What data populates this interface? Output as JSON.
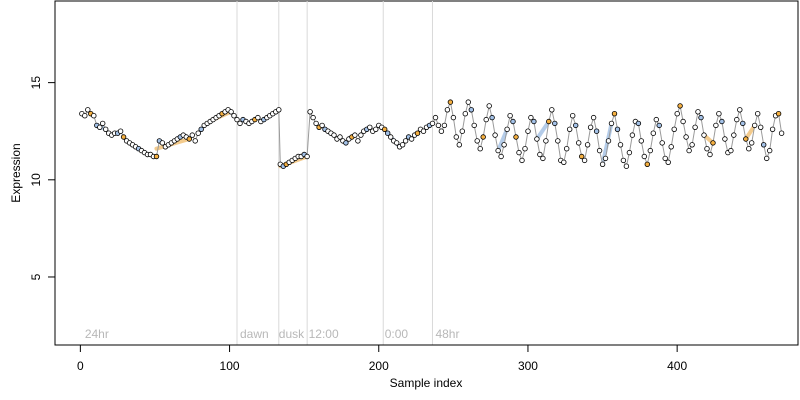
{
  "chart_data": {
    "type": "line",
    "title": "",
    "xlabel": "Sample index",
    "ylabel": "Expression",
    "xlim": [
      -17,
      481
    ],
    "ylim": [
      1.5,
      19.2
    ],
    "xticks": [
      0,
      100,
      200,
      300,
      400
    ],
    "yticks": [
      5,
      10,
      15
    ],
    "grid": false,
    "legend": "none",
    "colors": {
      "line": "#9a9a9a",
      "vline": "#d9d9d9",
      "point_stroke": "#000000",
      "point_fill_default": "#ffffff",
      "point_fill_orange": "#f5b041",
      "point_fill_blue": "#a4c2e8",
      "segment_orange": "#f2c27a",
      "segment_blue": "#a8c4e6",
      "annotation_text": "#b8b8b8"
    },
    "vertical_lines": [
      105,
      133,
      152,
      203,
      236
    ],
    "annotations": [
      {
        "x": 3,
        "text": "24hr"
      },
      {
        "x": 107,
        "text": "dawn"
      },
      {
        "x": 133,
        "text": "dusk"
      },
      {
        "x": 153,
        "text": "12:00"
      },
      {
        "x": 204,
        "text": "0:00"
      },
      {
        "x": 238,
        "text": "48hr"
      }
    ],
    "series": [
      {
        "points": [
          [
            1,
            13.4
          ],
          [
            3,
            13.3
          ],
          [
            5,
            13.6
          ],
          [
            7,
            13.4
          ],
          [
            9,
            13.3
          ],
          [
            11,
            12.8
          ],
          [
            13,
            12.7
          ],
          [
            15,
            12.9
          ],
          [
            17,
            12.6
          ],
          [
            19,
            12.4
          ],
          [
            21,
            12.3
          ],
          [
            23,
            12.4
          ],
          [
            25,
            12.4
          ],
          [
            27,
            12.5
          ],
          [
            29,
            12.2
          ],
          [
            31,
            12.0
          ],
          [
            33,
            11.9
          ],
          [
            35,
            11.8
          ],
          [
            37,
            11.7
          ],
          [
            39,
            11.6
          ],
          [
            41,
            11.5
          ],
          [
            43,
            11.4
          ],
          [
            45,
            11.3
          ],
          [
            47,
            11.3
          ],
          [
            49,
            11.2
          ],
          [
            51,
            11.2
          ],
          [
            53,
            12.0
          ],
          [
            55,
            11.9
          ],
          [
            57,
            11.7
          ],
          [
            59,
            11.8
          ],
          [
            61,
            11.9
          ],
          [
            63,
            12.0
          ],
          [
            65,
            12.1
          ],
          [
            67,
            12.2
          ],
          [
            69,
            12.3
          ],
          [
            71,
            12.2
          ],
          [
            73,
            12.1
          ],
          [
            75,
            12.3
          ],
          [
            77,
            12.0
          ],
          [
            79,
            12.4
          ],
          [
            81,
            12.6
          ],
          [
            83,
            12.8
          ],
          [
            85,
            12.9
          ],
          [
            87,
            13.0
          ],
          [
            89,
            13.1
          ],
          [
            91,
            13.2
          ],
          [
            93,
            13.3
          ],
          [
            95,
            13.4
          ],
          [
            97,
            13.5
          ],
          [
            99,
            13.6
          ],
          [
            101,
            13.5
          ],
          [
            103,
            13.3
          ],
          [
            105,
            13.1
          ],
          [
            107,
            12.9
          ],
          [
            109,
            13.1
          ],
          [
            111,
            13.0
          ],
          [
            113,
            12.9
          ],
          [
            115,
            13.0
          ],
          [
            117,
            13.1
          ],
          [
            119,
            13.2
          ],
          [
            121,
            13.0
          ],
          [
            123,
            13.1
          ],
          [
            125,
            13.2
          ],
          [
            127,
            13.3
          ],
          [
            129,
            13.4
          ],
          [
            131,
            13.5
          ],
          [
            133,
            13.6
          ],
          [
            134,
            10.8
          ],
          [
            136,
            10.7
          ],
          [
            138,
            10.8
          ],
          [
            140,
            10.9
          ],
          [
            142,
            11.0
          ],
          [
            144,
            11.1
          ],
          [
            146,
            11.2
          ],
          [
            148,
            11.2
          ],
          [
            150,
            11.3
          ],
          [
            152,
            11.2
          ],
          [
            154,
            13.5
          ],
          [
            156,
            13.2
          ],
          [
            158,
            12.9
          ],
          [
            160,
            12.7
          ],
          [
            162,
            12.8
          ],
          [
            164,
            12.6
          ],
          [
            166,
            12.5
          ],
          [
            168,
            12.4
          ],
          [
            170,
            12.3
          ],
          [
            172,
            12.1
          ],
          [
            174,
            12.2
          ],
          [
            176,
            12.0
          ],
          [
            178,
            11.9
          ],
          [
            180,
            12.1
          ],
          [
            182,
            12.2
          ],
          [
            184,
            12.3
          ],
          [
            186,
            12.0
          ],
          [
            188,
            12.3
          ],
          [
            190,
            12.5
          ],
          [
            192,
            12.6
          ],
          [
            194,
            12.7
          ],
          [
            196,
            12.5
          ],
          [
            198,
            12.6
          ],
          [
            200,
            12.8
          ],
          [
            202,
            12.7
          ],
          [
            204,
            12.6
          ],
          [
            206,
            12.4
          ],
          [
            208,
            12.2
          ],
          [
            210,
            12.0
          ],
          [
            212,
            11.9
          ],
          [
            214,
            11.7
          ],
          [
            216,
            11.8
          ],
          [
            218,
            12.0
          ],
          [
            220,
            12.2
          ],
          [
            222,
            12.1
          ],
          [
            224,
            12.3
          ],
          [
            226,
            12.4
          ],
          [
            228,
            12.6
          ],
          [
            230,
            12.5
          ],
          [
            232,
            12.7
          ],
          [
            234,
            12.8
          ],
          [
            236,
            12.9
          ],
          [
            238,
            13.2
          ],
          [
            240,
            12.8
          ],
          [
            242,
            12.5
          ],
          [
            244,
            12.8
          ],
          [
            246,
            13.6
          ],
          [
            248,
            14.0
          ],
          [
            250,
            13.2
          ],
          [
            252,
            12.2
          ],
          [
            254,
            11.8
          ],
          [
            256,
            12.5
          ],
          [
            258,
            13.4
          ],
          [
            260,
            14.0
          ],
          [
            262,
            13.6
          ],
          [
            264,
            12.8
          ],
          [
            266,
            12.0
          ],
          [
            268,
            11.6
          ],
          [
            270,
            12.2
          ],
          [
            272,
            13.1
          ],
          [
            274,
            13.8
          ],
          [
            276,
            13.2
          ],
          [
            278,
            12.3
          ],
          [
            280,
            11.5
          ],
          [
            282,
            11.2
          ],
          [
            284,
            11.8
          ],
          [
            286,
            12.6
          ],
          [
            288,
            13.3
          ],
          [
            290,
            13.0
          ],
          [
            292,
            12.2
          ],
          [
            294,
            11.4
          ],
          [
            296,
            11.0
          ],
          [
            298,
            11.6
          ],
          [
            300,
            12.5
          ],
          [
            302,
            13.2
          ],
          [
            304,
            13.0
          ],
          [
            306,
            12.1
          ],
          [
            308,
            11.3
          ],
          [
            310,
            11.1
          ],
          [
            312,
            12.0
          ],
          [
            314,
            13.0
          ],
          [
            316,
            13.6
          ],
          [
            318,
            12.9
          ],
          [
            320,
            12.0
          ],
          [
            322,
            11.0
          ],
          [
            324,
            10.9
          ],
          [
            326,
            11.6
          ],
          [
            328,
            12.6
          ],
          [
            330,
            13.3
          ],
          [
            332,
            12.8
          ],
          [
            334,
            11.9
          ],
          [
            336,
            11.2
          ],
          [
            338,
            11.0
          ],
          [
            340,
            11.8
          ],
          [
            342,
            12.7
          ],
          [
            344,
            13.2
          ],
          [
            346,
            12.5
          ],
          [
            348,
            11.5
          ],
          [
            350,
            10.8
          ],
          [
            352,
            11.1
          ],
          [
            354,
            12.0
          ],
          [
            356,
            12.9
          ],
          [
            358,
            13.4
          ],
          [
            360,
            12.6
          ],
          [
            362,
            11.8
          ],
          [
            364,
            11.0
          ],
          [
            366,
            10.7
          ],
          [
            368,
            11.4
          ],
          [
            370,
            12.3
          ],
          [
            372,
            13.0
          ],
          [
            374,
            12.9
          ],
          [
            376,
            12.0
          ],
          [
            378,
            11.2
          ],
          [
            380,
            10.8
          ],
          [
            382,
            11.5
          ],
          [
            384,
            12.4
          ],
          [
            386,
            13.1
          ],
          [
            388,
            12.8
          ],
          [
            390,
            11.9
          ],
          [
            392,
            11.1
          ],
          [
            394,
            10.9
          ],
          [
            396,
            11.7
          ],
          [
            398,
            12.6
          ],
          [
            400,
            13.4
          ],
          [
            402,
            13.8
          ],
          [
            404,
            13.0
          ],
          [
            406,
            12.2
          ],
          [
            408,
            11.5
          ],
          [
            410,
            11.8
          ],
          [
            412,
            12.7
          ],
          [
            414,
            13.5
          ],
          [
            416,
            13.2
          ],
          [
            418,
            12.3
          ],
          [
            420,
            11.6
          ],
          [
            422,
            11.3
          ],
          [
            424,
            11.9
          ],
          [
            426,
            12.8
          ],
          [
            428,
            13.4
          ],
          [
            430,
            13.0
          ],
          [
            432,
            12.1
          ],
          [
            434,
            11.4
          ],
          [
            436,
            11.5
          ],
          [
            438,
            12.3
          ],
          [
            440,
            13.1
          ],
          [
            442,
            13.6
          ],
          [
            444,
            12.9
          ],
          [
            446,
            12.1
          ],
          [
            448,
            11.6
          ],
          [
            450,
            11.9
          ],
          [
            452,
            12.8
          ],
          [
            454,
            13.4
          ],
          [
            456,
            12.7
          ],
          [
            458,
            11.8
          ],
          [
            460,
            11.1
          ],
          [
            462,
            11.5
          ],
          [
            464,
            12.6
          ],
          [
            466,
            13.3
          ],
          [
            468,
            13.4
          ],
          [
            470,
            12.4
          ]
        ],
        "highlight_segments": [
          {
            "x0": 11,
            "x1": 17,
            "y0": 12.8,
            "y1": 12.6,
            "color": "blue"
          },
          {
            "x0": 51,
            "x1": 73,
            "y0": 11.6,
            "y1": 12.1,
            "color": "orange"
          },
          {
            "x0": 89,
            "x1": 101,
            "y0": 13.1,
            "y1": 13.5,
            "color": "orange"
          },
          {
            "x0": 134,
            "x1": 152,
            "y0": 10.7,
            "y1": 11.2,
            "color": "orange"
          },
          {
            "x0": 208,
            "x1": 214,
            "y0": 12.2,
            "y1": 11.7,
            "color": "blue"
          },
          {
            "x0": 280,
            "x1": 286,
            "y0": 11.5,
            "y1": 12.6,
            "color": "blue"
          },
          {
            "x0": 306,
            "x1": 314,
            "y0": 12.1,
            "y1": 13.0,
            "color": "blue"
          },
          {
            "x0": 350,
            "x1": 356,
            "y0": 10.8,
            "y1": 12.9,
            "color": "blue"
          },
          {
            "x0": 418,
            "x1": 424,
            "y0": 12.3,
            "y1": 11.9,
            "color": "orange"
          },
          {
            "x0": 446,
            "x1": 452,
            "y0": 12.1,
            "y1": 12.8,
            "color": "orange"
          }
        ]
      }
    ]
  }
}
